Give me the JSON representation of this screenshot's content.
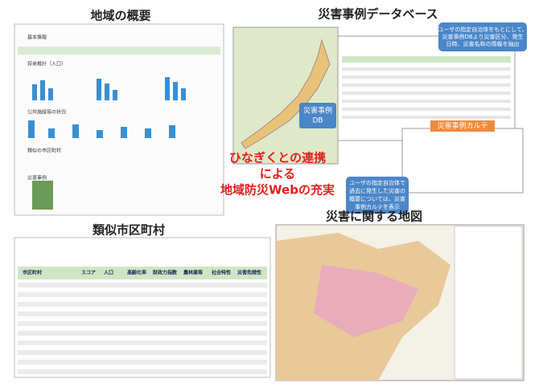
{
  "overview": {
    "title": "地域の概要",
    "sections": [
      "基本情報",
      "将来推計（人口）",
      "公共施設等の状況",
      "類似の市区町村",
      "災害事例"
    ]
  },
  "disaster_db": {
    "title": "災害事例データベース",
    "db_badge": [
      "災害事例",
      "DB"
    ],
    "callout_top": [
      "ユーザの指定自治体をもとにして、",
      "災害事例DBより災害区分、発生",
      "日時、災害名称の情報を抽出"
    ],
    "callout_bottom": [
      "ユーザの指定自治体で",
      "過去に発生した災害の",
      "概要については、災害",
      "事例カルテを表示"
    ],
    "karte_label": "災害事例カルテ"
  },
  "center": {
    "lines": [
      "ひなぎくとの連携",
      "による",
      "地域防災Webの充実"
    ]
  },
  "similar": {
    "title": "類似市区町村",
    "headers": [
      "市区町村",
      "スコア",
      "人口",
      "高齢化率",
      "財政力指数",
      "農林業等",
      "社会特性",
      "災害危険性"
    ]
  },
  "hazard_map": {
    "title": "災害に関する地図"
  }
}
